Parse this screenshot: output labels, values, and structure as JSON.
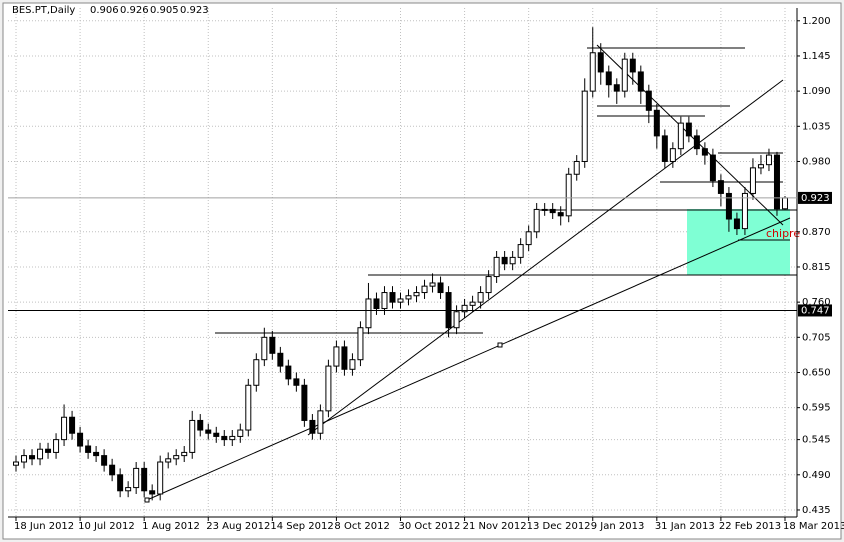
{
  "chart_data": {
    "type": "candlestick",
    "symbol": "BES.PT,Daily",
    "annotation": "chipre",
    "open": [
      0.505,
      0.51,
      0.52,
      0.515,
      0.53,
      0.525,
      0.545,
      0.58,
      0.555,
      0.535,
      0.525,
      0.52,
      0.505,
      0.49,
      0.465,
      0.47,
      0.5,
      0.465,
      0.46,
      0.51,
      0.515,
      0.52,
      0.525,
      0.575,
      0.56,
      0.555,
      0.55,
      0.545,
      0.55,
      0.56,
      0.63,
      0.67,
      0.705,
      0.68,
      0.66,
      0.64,
      0.63,
      0.575,
      0.555,
      0.59,
      0.66,
      0.69,
      0.655,
      0.67,
      0.72,
      0.765,
      0.75,
      0.775,
      0.76,
      0.765,
      0.77,
      0.775,
      0.785,
      0.79,
      0.775,
      0.72,
      0.745,
      0.755,
      0.76,
      0.775,
      0.8,
      0.83,
      0.82,
      0.83,
      0.85,
      0.87,
      0.905,
      0.905,
      0.9,
      0.895,
      0.96,
      0.98,
      1.09,
      1.15,
      1.12,
      1.1,
      1.09,
      1.14,
      1.12,
      1.09,
      1.06,
      1.02,
      0.98,
      1.0,
      1.04,
      1.02,
      1.0,
      0.99,
      0.95,
      0.93,
      0.89,
      0.875,
      0.93,
      0.97,
      0.975,
      0.99,
      0.906
    ],
    "high": [
      0.52,
      0.53,
      0.53,
      0.54,
      0.54,
      0.555,
      0.6,
      0.59,
      0.565,
      0.545,
      0.535,
      0.53,
      0.515,
      0.5,
      0.48,
      0.51,
      0.51,
      0.475,
      0.52,
      0.525,
      0.53,
      0.535,
      0.59,
      0.585,
      0.57,
      0.565,
      0.56,
      0.56,
      0.57,
      0.64,
      0.68,
      0.72,
      0.715,
      0.69,
      0.67,
      0.65,
      0.64,
      0.585,
      0.6,
      0.67,
      0.7,
      0.7,
      0.68,
      0.73,
      0.79,
      0.775,
      0.785,
      0.785,
      0.775,
      0.78,
      0.785,
      0.795,
      0.805,
      0.8,
      0.785,
      0.755,
      0.765,
      0.77,
      0.785,
      0.81,
      0.84,
      0.84,
      0.84,
      0.86,
      0.88,
      0.915,
      0.915,
      0.915,
      0.91,
      0.97,
      0.99,
      1.11,
      1.19,
      1.165,
      1.13,
      1.11,
      1.15,
      1.15,
      1.13,
      1.1,
      1.07,
      1.03,
      1.01,
      1.05,
      1.05,
      1.03,
      1.01,
      1.0,
      0.96,
      0.94,
      0.9,
      0.94,
      0.985,
      0.99,
      1.0,
      0.995,
      0.926
    ],
    "low": [
      0.495,
      0.5,
      0.505,
      0.505,
      0.515,
      0.515,
      0.535,
      0.545,
      0.525,
      0.515,
      0.51,
      0.495,
      0.48,
      0.455,
      0.455,
      0.46,
      0.455,
      0.45,
      0.45,
      0.5,
      0.505,
      0.51,
      0.515,
      0.55,
      0.545,
      0.54,
      0.535,
      0.535,
      0.54,
      0.55,
      0.62,
      0.66,
      0.67,
      0.65,
      0.63,
      0.62,
      0.565,
      0.545,
      0.545,
      0.58,
      0.65,
      0.645,
      0.645,
      0.66,
      0.71,
      0.74,
      0.74,
      0.75,
      0.75,
      0.755,
      0.76,
      0.765,
      0.775,
      0.765,
      0.705,
      0.71,
      0.735,
      0.745,
      0.75,
      0.765,
      0.79,
      0.81,
      0.81,
      0.82,
      0.84,
      0.86,
      0.895,
      0.89,
      0.88,
      0.885,
      0.95,
      0.97,
      1.08,
      1.1,
      1.08,
      1.07,
      1.08,
      1.1,
      1.07,
      1.04,
      1.0,
      0.97,
      0.97,
      0.99,
      1.01,
      0.99,
      0.975,
      0.94,
      0.91,
      0.87,
      0.865,
      0.865,
      0.92,
      0.96,
      0.965,
      0.895,
      0.905
    ],
    "close": [
      0.51,
      0.52,
      0.515,
      0.53,
      0.525,
      0.545,
      0.58,
      0.555,
      0.535,
      0.525,
      0.52,
      0.505,
      0.49,
      0.465,
      0.47,
      0.5,
      0.465,
      0.46,
      0.51,
      0.515,
      0.52,
      0.525,
      0.575,
      0.56,
      0.555,
      0.55,
      0.545,
      0.55,
      0.56,
      0.63,
      0.67,
      0.705,
      0.68,
      0.66,
      0.64,
      0.63,
      0.575,
      0.555,
      0.59,
      0.66,
      0.69,
      0.655,
      0.67,
      0.72,
      0.765,
      0.75,
      0.775,
      0.76,
      0.765,
      0.77,
      0.775,
      0.785,
      0.79,
      0.775,
      0.72,
      0.745,
      0.755,
      0.76,
      0.775,
      0.8,
      0.83,
      0.82,
      0.83,
      0.85,
      0.87,
      0.905,
      0.905,
      0.9,
      0.895,
      0.96,
      0.98,
      1.09,
      1.15,
      1.12,
      1.1,
      1.09,
      1.14,
      1.12,
      1.09,
      1.06,
      1.02,
      0.98,
      1.0,
      1.04,
      1.02,
      1.0,
      0.99,
      0.95,
      0.93,
      0.89,
      0.875,
      0.93,
      0.97,
      0.975,
      0.99,
      0.906,
      0.923
    ],
    "hline": 0.747,
    "xlim": [
      -1,
      97.5
    ],
    "xticks": [
      {
        "value": 0,
        "label": "18 Jun 2012"
      },
      {
        "value": 8,
        "label": "10 Jul 2012"
      },
      {
        "value": 16,
        "label": "1 Aug 2012"
      },
      {
        "value": 24,
        "label": "23 Aug 2012"
      },
      {
        "value": 32,
        "label": "14 Sep 2012"
      },
      {
        "value": 40,
        "label": "8 Oct 2012"
      },
      {
        "value": 48,
        "label": "30 Oct 2012"
      },
      {
        "value": 56,
        "label": "21 Nov 2012"
      },
      {
        "value": 64,
        "label": "13 Dec 2012"
      },
      {
        "value": 72,
        "label": "9 Jan 2013"
      },
      {
        "value": 80,
        "label": "31 Jan 2013"
      },
      {
        "value": 88,
        "label": "22 Feb 2013"
      },
      {
        "value": 96,
        "label": "18 Mar 2013"
      }
    ],
    "ylim": [
      0.424,
      1.22
    ],
    "yticks": [
      {
        "value": 1.2,
        "label": "1.200"
      },
      1.145,
      {
        "value": 1.09,
        "label": "1.090"
      },
      1.035,
      {
        "value": 0.98,
        "label": "0.980"
      },
      {
        "value": 0.87,
        "label": "0.870"
      },
      0.815,
      {
        "value": 0.76,
        "label": "0.760"
      },
      0.705,
      {
        "value": 0.65,
        "label": "0.650"
      },
      0.595,
      0.545,
      {
        "value": 0.49,
        "label": "0.490"
      },
      0.435
    ],
    "grid": true
  }
}
